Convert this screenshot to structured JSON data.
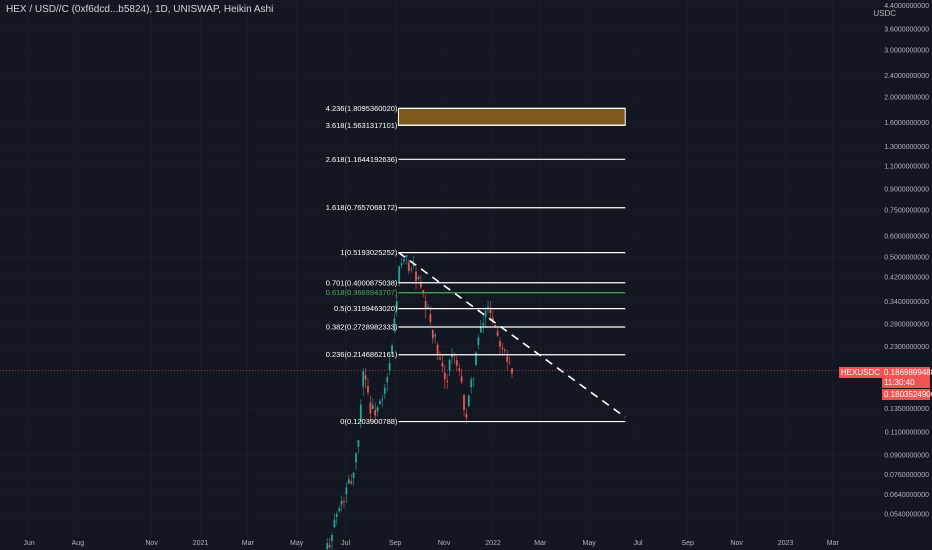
{
  "header": {
    "symbol_line": "HEX / USD//C (0xf6dcd...b5824), 1D, UNISWAP, Heikin Ashi",
    "currency_unit": "USDC"
  },
  "price_axis": {
    "ticks": [
      {
        "label": "4.4000000000",
        "value": 4.4
      },
      {
        "label": "3.6000000000",
        "value": 3.6
      },
      {
        "label": "3.0000000000",
        "value": 3.0
      },
      {
        "label": "2.4000000000",
        "value": 2.4
      },
      {
        "label": "2.0000000000",
        "value": 2.0
      },
      {
        "label": "1.6000000000",
        "value": 1.6
      },
      {
        "label": "1.3000000000",
        "value": 1.3
      },
      {
        "label": "1.1000000000",
        "value": 1.1
      },
      {
        "label": "0.9000000000",
        "value": 0.9
      },
      {
        "label": "0.7500000000",
        "value": 0.75
      },
      {
        "label": "0.6000000000",
        "value": 0.6
      },
      {
        "label": "0.5000000000",
        "value": 0.5
      },
      {
        "label": "0.4200000000",
        "value": 0.42
      },
      {
        "label": "0.3400000000",
        "value": 0.34
      },
      {
        "label": "0.2800000000",
        "value": 0.28
      },
      {
        "label": "0.2300000000",
        "value": 0.23
      },
      {
        "label": "0.1350000000",
        "value": 0.135
      },
      {
        "label": "0.1100000000",
        "value": 0.11
      },
      {
        "label": "0.0900000000",
        "value": 0.09
      },
      {
        "label": "0.0760000000",
        "value": 0.076
      },
      {
        "label": "0.0640000000",
        "value": 0.064
      },
      {
        "label": "0.0540000000",
        "value": 0.054
      }
    ],
    "scale": "log"
  },
  "time_axis": {
    "ticks": [
      {
        "label": "Jun",
        "date": "2020-06-01"
      },
      {
        "label": "Aug",
        "date": "2020-08-01"
      },
      {
        "label": "Nov",
        "date": "2020-11-01"
      },
      {
        "label": "2021",
        "date": "2021-01-01"
      },
      {
        "label": "Mar",
        "date": "2021-03-01"
      },
      {
        "label": "May",
        "date": "2021-05-01"
      },
      {
        "label": "Jul",
        "date": "2021-07-01"
      },
      {
        "label": "Sep",
        "date": "2021-09-01"
      },
      {
        "label": "Nov",
        "date": "2021-11-01"
      },
      {
        "label": "2022",
        "date": "2022-01-01"
      },
      {
        "label": "Mar",
        "date": "2022-03-01"
      },
      {
        "label": "May",
        "date": "2022-05-01"
      },
      {
        "label": "Jul",
        "date": "2022-07-01"
      },
      {
        "label": "Sep",
        "date": "2022-09-01"
      },
      {
        "label": "Nov",
        "date": "2022-11-01"
      },
      {
        "label": "2023",
        "date": "2023-01-01"
      },
      {
        "label": "Mar",
        "date": "2023-03-01"
      }
    ]
  },
  "price_tags": {
    "symbol": "HEXUSDC",
    "last_price": "0.1869899488",
    "countdown": "11:30:40",
    "second_price": "0.1803524906",
    "color": "#f05350"
  },
  "colors": {
    "up": "#26a69a",
    "down": "#ef5350",
    "fib_line": "#ffffff",
    "fib_highlight": "#4caf50",
    "target_zone": "#7f5a1e",
    "background": "#131722"
  },
  "chart_data": {
    "type": "candlestick",
    "chart_style": "Heikin Ashi",
    "y_scale": "log",
    "candles_approx": [
      {
        "date": "2021-06-01",
        "close": 0.034
      },
      {
        "date": "2021-06-15",
        "close": 0.05
      },
      {
        "date": "2021-07-01",
        "close": 0.065
      },
      {
        "date": "2021-07-10",
        "close": 0.078
      },
      {
        "date": "2021-07-18",
        "close": 0.12
      },
      {
        "date": "2021-07-22",
        "close": 0.2
      },
      {
        "date": "2021-08-01",
        "close": 0.13
      },
      {
        "date": "2021-08-15",
        "close": 0.14
      },
      {
        "date": "2021-08-25",
        "close": 0.2
      },
      {
        "date": "2021-09-05",
        "close": 0.45
      },
      {
        "date": "2021-09-15",
        "close": 0.48
      },
      {
        "date": "2021-09-25",
        "close": 0.44
      },
      {
        "date": "2021-10-05",
        "close": 0.34
      },
      {
        "date": "2021-10-15",
        "close": 0.28
      },
      {
        "date": "2021-10-25",
        "close": 0.2
      },
      {
        "date": "2021-11-01",
        "close": 0.17
      },
      {
        "date": "2021-11-10",
        "close": 0.22
      },
      {
        "date": "2021-11-20",
        "close": 0.17
      },
      {
        "date": "2021-11-28",
        "close": 0.125
      },
      {
        "date": "2021-12-10",
        "close": 0.22
      },
      {
        "date": "2021-12-25",
        "close": 0.34
      },
      {
        "date": "2022-01-05",
        "close": 0.26
      },
      {
        "date": "2022-01-15",
        "close": 0.23
      },
      {
        "date": "2022-01-25",
        "close": 0.187
      }
    ],
    "fib_levels": [
      {
        "label": "4.236(1.8095360020)",
        "ratio": 4.236,
        "price": 1.809536002
      },
      {
        "label": "3.618(1.5631317101)",
        "ratio": 3.618,
        "price": 1.5631317101
      },
      {
        "label": "2.618(1.1644192636)",
        "ratio": 2.618,
        "price": 1.1644192636
      },
      {
        "label": "1.618(0.7657068172)",
        "ratio": 1.618,
        "price": 0.7657068172
      },
      {
        "label": "1(0.5193025252)",
        "ratio": 1,
        "price": 0.5193025252
      },
      {
        "label": "0.701(0.4000875038)",
        "ratio": 0.701,
        "price": 0.4000875038
      },
      {
        "label": "0.618(0.3669943707)",
        "ratio": 0.618,
        "price": 0.3669943707,
        "highlight": true
      },
      {
        "label": "0.5(0.3199463020)",
        "ratio": 0.5,
        "price": 0.319946302
      },
      {
        "label": "0.382(0.2728982333)",
        "ratio": 0.382,
        "price": 0.2728982333
      },
      {
        "label": "0.236(0.2146862161)",
        "ratio": 0.236,
        "price": 0.2146862161
      },
      {
        "label": "0(0.1203900788)",
        "ratio": 0,
        "price": 0.1203900788
      }
    ],
    "fib_start_date": "2021-09-05",
    "fib_end_date": "2022-06-15",
    "target_zone": {
      "from_price": 1.5631317101,
      "to_price": 1.809536002
    },
    "trendline": {
      "start": {
        "date": "2021-09-05",
        "price": 0.52
      },
      "end": {
        "date": "2022-06-15",
        "price": 0.125
      },
      "style": "dashed"
    },
    "current_price_line": 0.1869899488
  }
}
